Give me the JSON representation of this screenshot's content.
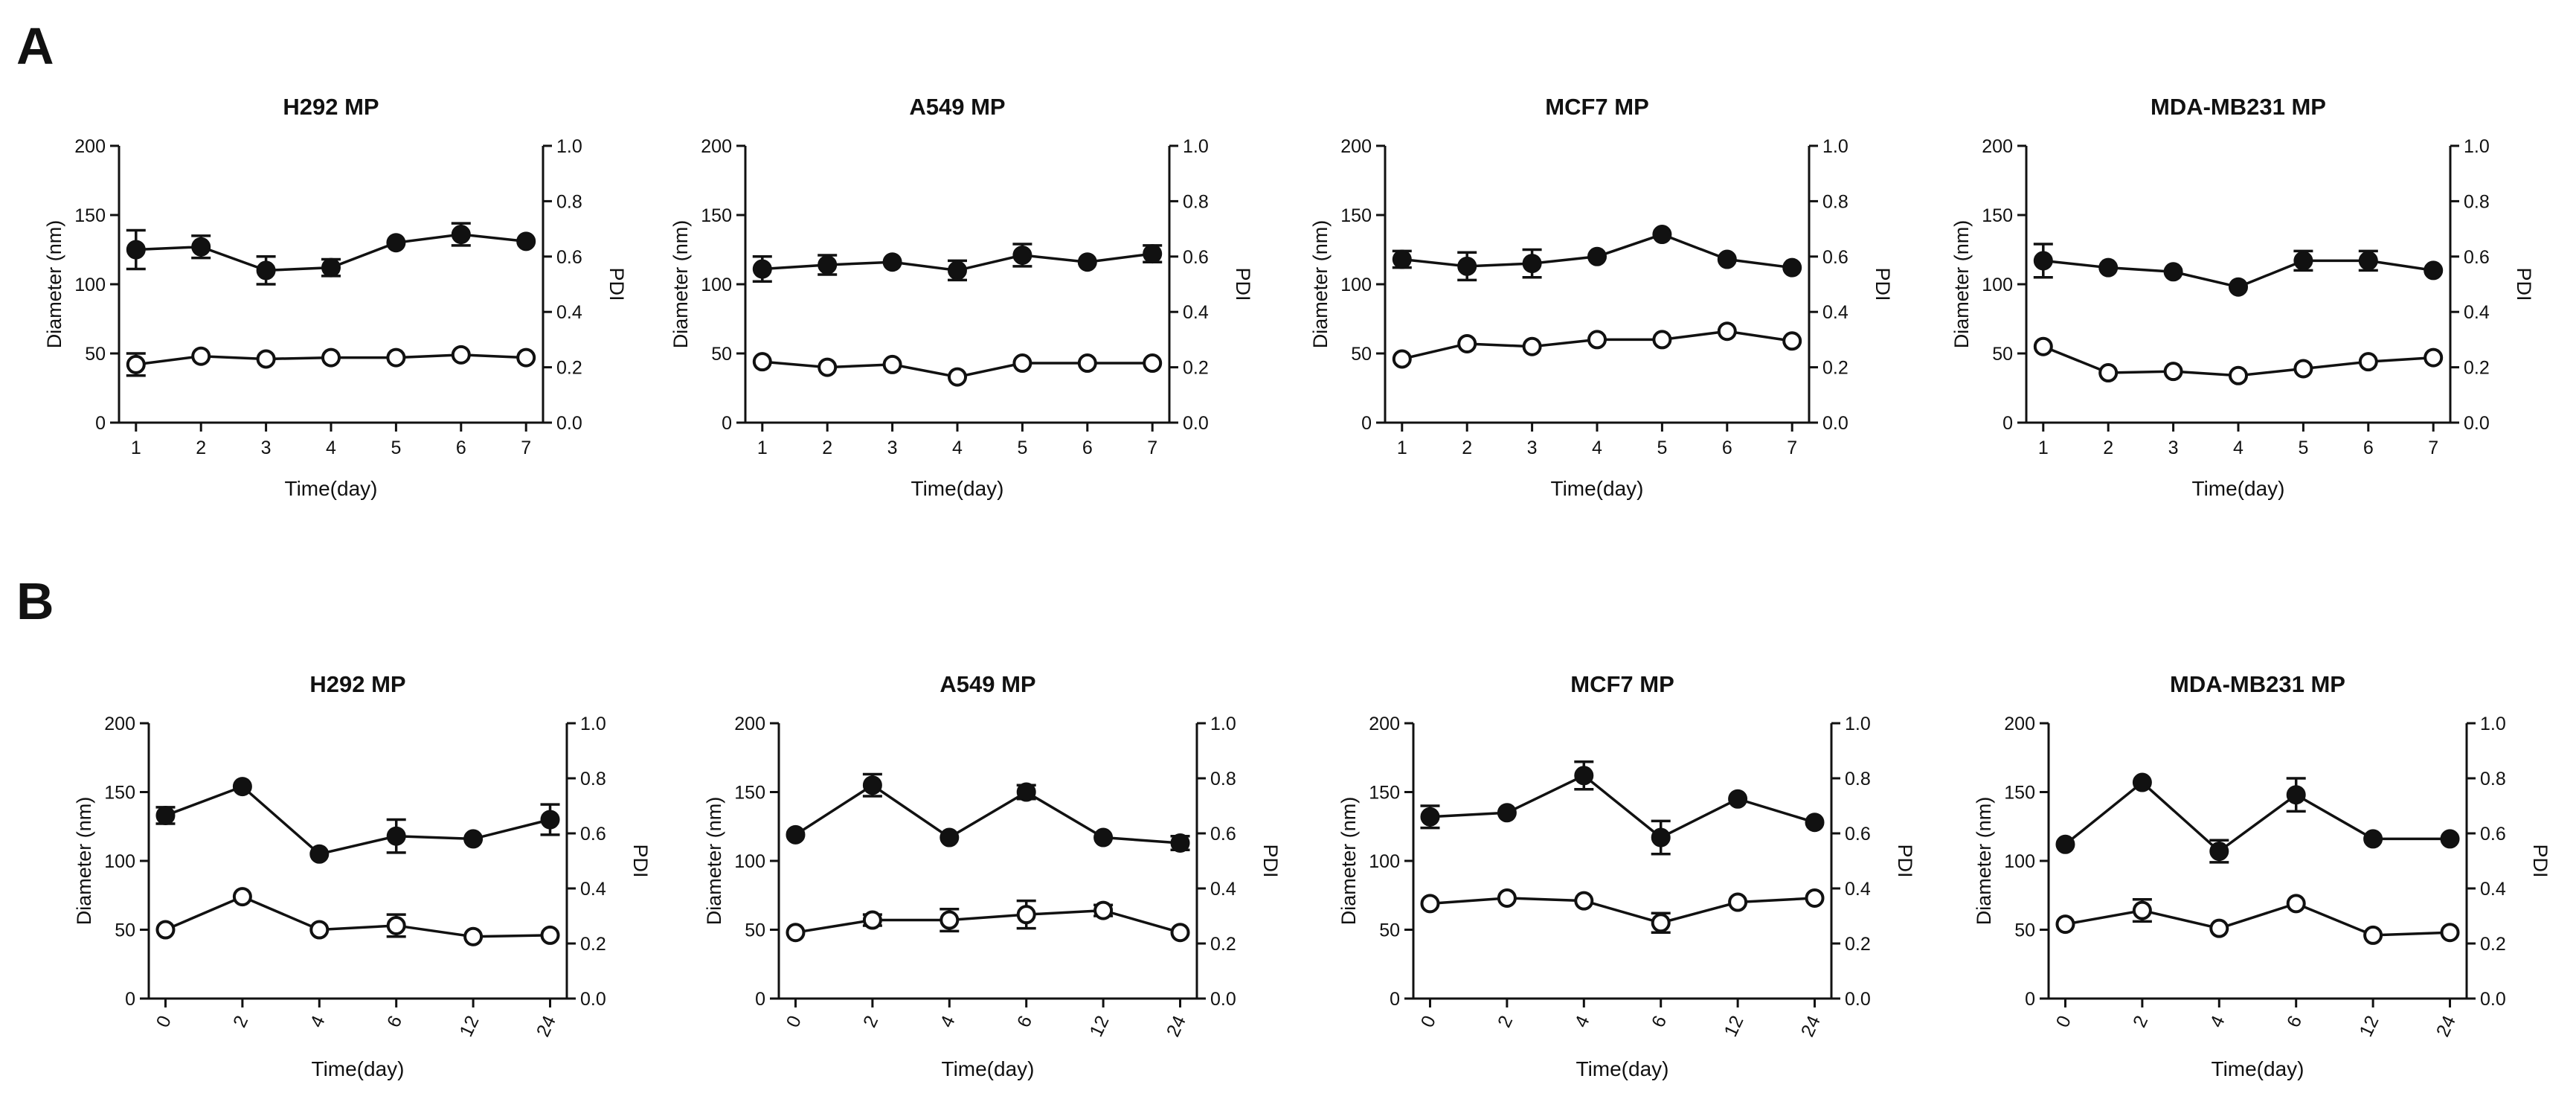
{
  "panels": [
    {
      "letter": "A"
    },
    {
      "letter": "B"
    }
  ],
  "chart_data": [
    {
      "panel": "A",
      "type": "line",
      "title": "H292 MP",
      "xlabel": "Time(day)",
      "ylabel": "Diameter (nm)",
      "y2label": "PDI",
      "categories": [
        "1",
        "2",
        "3",
        "4",
        "5",
        "6",
        "7"
      ],
      "ylim": [
        0,
        200
      ],
      "yticks": [
        "0",
        "50",
        "100",
        "150",
        "200"
      ],
      "y2lim": [
        0,
        1.0
      ],
      "y2ticks": [
        "0.0",
        "0.2",
        "0.4",
        "0.6",
        "0.8",
        "1.0"
      ],
      "series": [
        {
          "name": "Diameter",
          "marker": "filled",
          "axis": "left",
          "values": [
            125,
            127,
            110,
            112,
            130,
            136,
            131
          ],
          "errors": [
            14,
            8,
            10,
            6,
            2,
            8,
            2
          ]
        },
        {
          "name": "PDI",
          "marker": "open",
          "axis": "left",
          "values": [
            42,
            48,
            46,
            47,
            47,
            49,
            47
          ],
          "errors": [
            8,
            2,
            2,
            2,
            2,
            2,
            2
          ]
        }
      ]
    },
    {
      "panel": "A",
      "type": "line",
      "title": "A549 MP",
      "xlabel": "Time(day)",
      "ylabel": "Diameter (nm)",
      "y2label": "PDI",
      "categories": [
        "1",
        "2",
        "3",
        "4",
        "5",
        "6",
        "7"
      ],
      "ylim": [
        0,
        200
      ],
      "yticks": [
        "0",
        "50",
        "100",
        "150",
        "200"
      ],
      "y2lim": [
        0,
        1.0
      ],
      "y2ticks": [
        "0.0",
        "0.2",
        "0.4",
        "0.6",
        "0.8",
        "1.0"
      ],
      "series": [
        {
          "name": "Diameter",
          "marker": "filled",
          "axis": "left",
          "values": [
            111,
            114,
            116,
            110,
            121,
            116,
            122
          ],
          "errors": [
            9,
            7,
            3,
            7,
            8,
            2,
            6
          ]
        },
        {
          "name": "PDI",
          "marker": "open",
          "axis": "left",
          "values": [
            44,
            40,
            42,
            33,
            43,
            43,
            43
          ],
          "errors": [
            2,
            2,
            2,
            2,
            2,
            2,
            2
          ]
        }
      ]
    },
    {
      "panel": "A",
      "type": "line",
      "title": "MCF7 MP",
      "xlabel": "Time(day)",
      "ylabel": "Diameter (nm)",
      "y2label": "PDI",
      "categories": [
        "1",
        "2",
        "3",
        "4",
        "5",
        "6",
        "7"
      ],
      "ylim": [
        0,
        200
      ],
      "yticks": [
        "0",
        "50",
        "100",
        "150",
        "200"
      ],
      "y2lim": [
        0,
        1.0
      ],
      "y2ticks": [
        "0.0",
        "0.2",
        "0.4",
        "0.6",
        "0.8",
        "1.0"
      ],
      "series": [
        {
          "name": "Diameter",
          "marker": "filled",
          "axis": "left",
          "values": [
            118,
            113,
            115,
            120,
            136,
            118,
            112
          ],
          "errors": [
            6,
            10,
            10,
            2,
            2,
            2,
            2
          ]
        },
        {
          "name": "PDI",
          "marker": "open",
          "axis": "left",
          "values": [
            46,
            57,
            55,
            60,
            60,
            66,
            59
          ],
          "errors": [
            2,
            2,
            2,
            2,
            2,
            3,
            2
          ]
        }
      ]
    },
    {
      "panel": "A",
      "type": "line",
      "title": "MDA-MB231 MP",
      "xlabel": "Time(day)",
      "ylabel": "Diameter (nm)",
      "y2label": "PDI",
      "categories": [
        "1",
        "2",
        "3",
        "4",
        "5",
        "6",
        "7"
      ],
      "ylim": [
        0,
        200
      ],
      "yticks": [
        "0",
        "50",
        "100",
        "150",
        "200"
      ],
      "y2lim": [
        0,
        1.0
      ],
      "y2ticks": [
        "0.0",
        "0.2",
        "0.4",
        "0.6",
        "0.8",
        "1.0"
      ],
      "series": [
        {
          "name": "Diameter",
          "marker": "filled",
          "axis": "left",
          "values": [
            117,
            112,
            109,
            98,
            117,
            117,
            110
          ],
          "errors": [
            12,
            3,
            3,
            3,
            7,
            7,
            3
          ]
        },
        {
          "name": "PDI",
          "marker": "open",
          "axis": "left",
          "values": [
            55,
            36,
            37,
            34,
            39,
            44,
            47
          ],
          "errors": [
            2,
            2,
            2,
            2,
            2,
            2,
            2
          ]
        }
      ]
    },
    {
      "panel": "B",
      "type": "line",
      "title": "H292 MP",
      "xlabel": "Time(day)",
      "ylabel": "Diameter (nm)",
      "y2label": "PDI",
      "categories": [
        "0",
        "2",
        "4",
        "6",
        "12",
        "24"
      ],
      "ylim": [
        0,
        200
      ],
      "yticks": [
        "0",
        "50",
        "100",
        "150",
        "200"
      ],
      "y2lim": [
        0,
        1.0
      ],
      "y2ticks": [
        "0.0",
        "0.2",
        "0.4",
        "0.6",
        "0.8",
        "1.0"
      ],
      "series": [
        {
          "name": "Diameter",
          "marker": "filled",
          "axis": "left",
          "values": [
            133,
            154,
            105,
            118,
            116,
            130
          ],
          "errors": [
            6,
            2,
            2,
            12,
            2,
            11
          ]
        },
        {
          "name": "PDI",
          "marker": "open",
          "axis": "left",
          "values": [
            50,
            74,
            50,
            53,
            45,
            46
          ],
          "errors": [
            2,
            2,
            2,
            8,
            2,
            2
          ]
        }
      ]
    },
    {
      "panel": "B",
      "type": "line",
      "title": "A549 MP",
      "xlabel": "Time(day)",
      "ylabel": "Diameter (nm)",
      "y2label": "PDI",
      "categories": [
        "0",
        "2",
        "4",
        "6",
        "12",
        "24"
      ],
      "ylim": [
        0,
        200
      ],
      "yticks": [
        "0",
        "50",
        "100",
        "150",
        "200"
      ],
      "y2lim": [
        0,
        1.0
      ],
      "y2ticks": [
        "0.0",
        "0.2",
        "0.4",
        "0.6",
        "0.8",
        "1.0"
      ],
      "series": [
        {
          "name": "Diameter",
          "marker": "filled",
          "axis": "left",
          "values": [
            119,
            155,
            117,
            150,
            117,
            113
          ],
          "errors": [
            2,
            8,
            2,
            5,
            2,
            5
          ]
        },
        {
          "name": "PDI",
          "marker": "open",
          "axis": "left",
          "values": [
            48,
            57,
            57,
            61,
            64,
            48
          ],
          "errors": [
            2,
            4,
            8,
            10,
            4,
            2
          ]
        }
      ]
    },
    {
      "panel": "B",
      "type": "line",
      "title": "MCF7 MP",
      "xlabel": "Time(day)",
      "ylabel": "Diameter (nm)",
      "y2label": "PDI",
      "categories": [
        "0",
        "2",
        "4",
        "6",
        "12",
        "24"
      ],
      "ylim": [
        0,
        200
      ],
      "yticks": [
        "0",
        "50",
        "100",
        "150",
        "200"
      ],
      "y2lim": [
        0,
        1.0
      ],
      "y2ticks": [
        "0.0",
        "0.2",
        "0.4",
        "0.6",
        "0.8",
        "1.0"
      ],
      "series": [
        {
          "name": "Diameter",
          "marker": "filled",
          "axis": "left",
          "values": [
            132,
            135,
            162,
            117,
            145,
            128
          ],
          "errors": [
            8,
            2,
            10,
            12,
            2,
            2
          ]
        },
        {
          "name": "PDI",
          "marker": "open",
          "axis": "left",
          "values": [
            69,
            73,
            71,
            55,
            70,
            73
          ],
          "errors": [
            2,
            2,
            2,
            7,
            2,
            2
          ]
        }
      ]
    },
    {
      "panel": "B",
      "type": "line",
      "title": "MDA-MB231 MP",
      "xlabel": "Time(day)",
      "ylabel": "Diameter (nm)",
      "y2label": "PDI",
      "categories": [
        "0",
        "2",
        "4",
        "6",
        "12",
        "24"
      ],
      "ylim": [
        0,
        200
      ],
      "yticks": [
        "0",
        "50",
        "100",
        "150",
        "200"
      ],
      "y2lim": [
        0,
        1.0
      ],
      "y2ticks": [
        "0.0",
        "0.2",
        "0.4",
        "0.6",
        "0.8",
        "1.0"
      ],
      "series": [
        {
          "name": "Diameter",
          "marker": "filled",
          "axis": "left",
          "values": [
            112,
            157,
            107,
            148,
            116,
            116
          ],
          "errors": [
            2,
            2,
            8,
            12,
            2,
            2
          ]
        },
        {
          "name": "PDI",
          "marker": "open",
          "axis": "left",
          "values": [
            54,
            64,
            51,
            69,
            46,
            48
          ],
          "errors": [
            2,
            8,
            2,
            2,
            2,
            2
          ]
        }
      ]
    }
  ]
}
